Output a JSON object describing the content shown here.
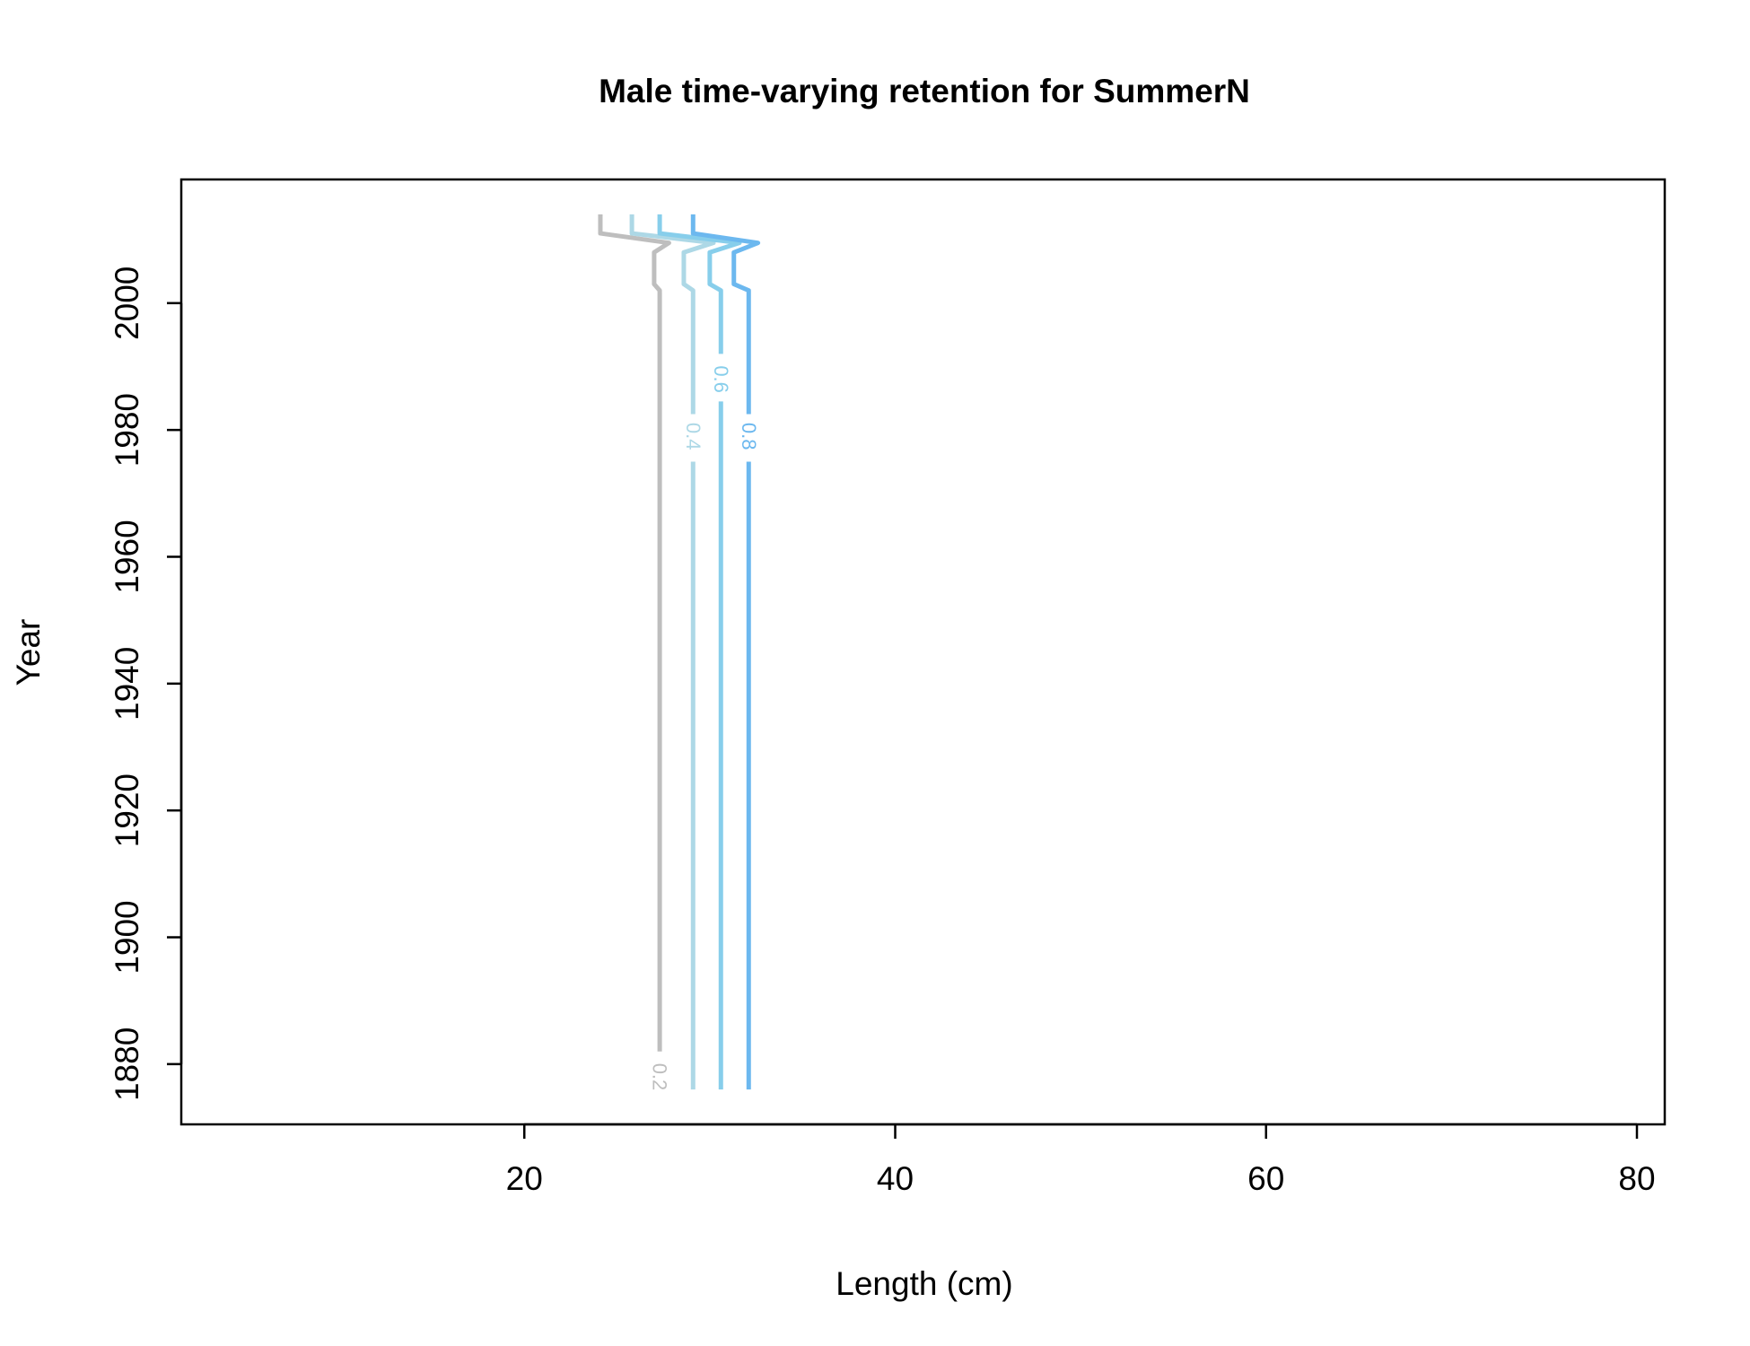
{
  "chart_data": {
    "type": "contour",
    "title": "Male time-varying retention for SummerN",
    "xlabel": "Length (cm)",
    "ylabel": "Year",
    "xlim": [
      1.5,
      81.5
    ],
    "ylim": [
      1870.5,
      2019.5
    ],
    "x_ticks": [
      20,
      40,
      60,
      80
    ],
    "y_ticks": [
      1880,
      1900,
      1920,
      1940,
      1960,
      1980,
      2000
    ],
    "grid": false,
    "legend": "none",
    "series": [
      {
        "name": "0.2",
        "color": "#bebebe",
        "points": [
          [
            27.3,
            1876
          ],
          [
            27.3,
            2002
          ],
          [
            27.0,
            2003
          ],
          [
            27.0,
            2008
          ],
          [
            27.8,
            2009.5
          ],
          [
            24.1,
            2011
          ],
          [
            24.1,
            2014
          ]
        ],
        "label": "0.2",
        "label_at": [
          27.3,
          1878
        ],
        "gap_y": [
          1874.5,
          1882
        ]
      },
      {
        "name": "0.4",
        "color": "#add8e6",
        "points": [
          [
            29.1,
            1876
          ],
          [
            29.1,
            2002
          ],
          [
            28.6,
            2003
          ],
          [
            28.6,
            2008
          ],
          [
            30.2,
            2009.5
          ],
          [
            25.8,
            2011
          ],
          [
            25.8,
            2014
          ]
        ],
        "label": "0.4",
        "label_at": [
          29.1,
          1979
        ],
        "gap_y": [
          1975,
          1982.5
        ]
      },
      {
        "name": "0.6",
        "color": "#87ceeb",
        "points": [
          [
            30.6,
            1876
          ],
          [
            30.6,
            2002
          ],
          [
            30.0,
            2003
          ],
          [
            30.0,
            2008
          ],
          [
            31.6,
            2009.5
          ],
          [
            27.3,
            2011
          ],
          [
            27.3,
            2014
          ]
        ],
        "label": "0.6",
        "label_at": [
          30.6,
          1988
        ],
        "gap_y": [
          1984.5,
          1992
        ]
      },
      {
        "name": "0.8",
        "color": "#6cb8ef",
        "points": [
          [
            32.1,
            1876
          ],
          [
            32.1,
            2002
          ],
          [
            31.3,
            2003
          ],
          [
            31.3,
            2008
          ],
          [
            32.6,
            2009.5
          ],
          [
            29.1,
            2011
          ],
          [
            29.1,
            2014
          ]
        ],
        "label": "0.8",
        "label_at": [
          32.1,
          1979
        ],
        "gap_y": [
          1975,
          1982.5
        ]
      }
    ]
  }
}
